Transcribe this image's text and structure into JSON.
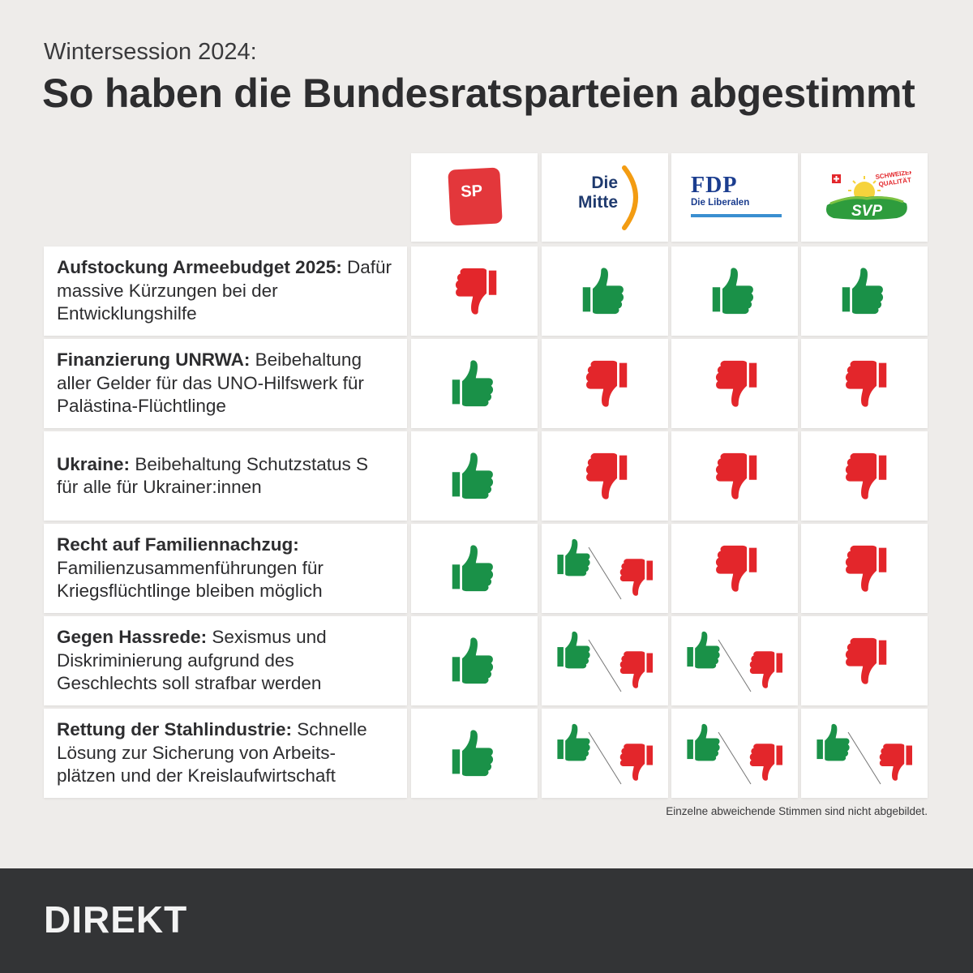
{
  "header": {
    "subtitle": "Wintersession 2024:",
    "title": "So haben die Bundesratsparteien abgestimmt"
  },
  "parties": [
    {
      "logo_text": "SP",
      "color": "#e3373b"
    },
    {
      "logo_line1": "Die",
      "logo_line2": "Mitte",
      "color": "#1f3a6e",
      "accent": "#f39c12"
    },
    {
      "logo_text": "FDP",
      "logo_sub": "Die Liberalen",
      "color": "#1b3d8f",
      "accent": "#3a8fd0"
    },
    {
      "logo_text": "SVP",
      "logo_badge_line1": "SCHWEIZER",
      "logo_badge_line2": "QUALITÄT",
      "color": "#2e9c3d"
    }
  ],
  "rows": [
    {
      "bold": "Aufstockung Armeebudget 2025:",
      "text": "Dafür massive Kürzungen bei der Entwicklungshilfe",
      "votes": [
        "no",
        "yes",
        "yes",
        "yes"
      ]
    },
    {
      "bold": "Finanzierung UNRWA:",
      "text": "Beibehaltung aller Gelder für das UNO-Hilfswerk für Palästina-Flüchtlinge",
      "votes": [
        "yes",
        "no",
        "no",
        "no"
      ]
    },
    {
      "bold": "Ukraine:",
      "text": "Beibehaltung Schutzstatus S für alle für Ukrainer:innen",
      "votes": [
        "yes",
        "no",
        "no",
        "no"
      ]
    },
    {
      "bold": "Recht auf Familiennachzug:",
      "text": "Familienzusammenführungen für Kriegsflüchtlinge bleiben möglich",
      "votes": [
        "yes",
        "split",
        "no",
        "no"
      ]
    },
    {
      "bold": "Gegen Hassrede:",
      "text": "Sexismus und Diskriminierung aufgrund des Geschlechts soll strafbar werden",
      "votes": [
        "yes",
        "split",
        "split",
        "no"
      ]
    },
    {
      "bold": "Rettung der Stahlindustrie:",
      "text": "Schnelle Lösung zur Sicherung von Arbeits- plätzen und der Kreislaufwirtschaft",
      "votes": [
        "yes",
        "split",
        "split",
        "split"
      ]
    }
  ],
  "note": "Einzelne abweichende Stimmen sind nicht abgebildet.",
  "footer": {
    "brand": "DIREKT"
  },
  "colors": {
    "yes": "#1a9148",
    "no": "#e3262b",
    "background": "#eeecea",
    "footer": "#333436"
  }
}
